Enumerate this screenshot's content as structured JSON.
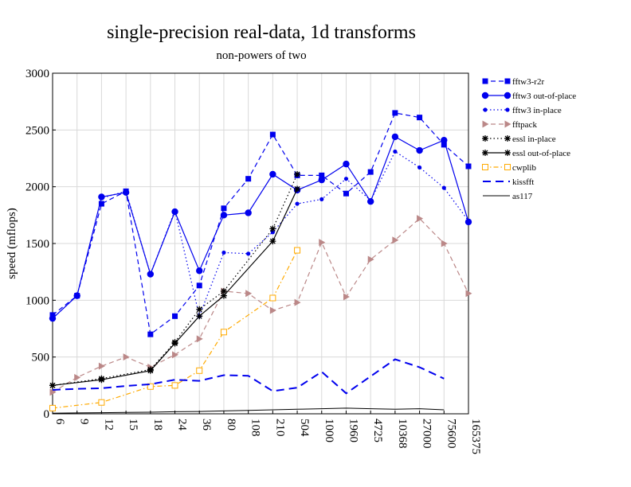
{
  "chart_data": {
    "type": "line",
    "title": "single-precision real-data, 1d transforms",
    "subtitle": "non-powers of two",
    "xlabel": "",
    "ylabel": "speed (mflops)",
    "ylim": [
      0,
      3000
    ],
    "yticks": [
      0,
      500,
      1000,
      1500,
      2000,
      2500,
      3000
    ],
    "grid": true,
    "legend_position": "right",
    "categories": [
      "6",
      "9",
      "12",
      "15",
      "18",
      "24",
      "36",
      "80",
      "108",
      "210",
      "504",
      "1000",
      "1960",
      "4725",
      "10368",
      "27000",
      "75600",
      "165375"
    ],
    "series": [
      {
        "name": "fftw3-r2r",
        "color": "#0000ee",
        "dash": "dashed",
        "marker": "square",
        "values": [
          870,
          1040,
          1850,
          1960,
          700,
          860,
          1130,
          1810,
          2070,
          2460,
          2100,
          2100,
          1940,
          2130,
          2650,
          2610,
          2370,
          2180
        ]
      },
      {
        "name": "fftw3 out-of-place",
        "color": "#0000ee",
        "dash": "solid",
        "marker": "circle",
        "values": [
          840,
          1040,
          1910,
          1950,
          1230,
          1780,
          1260,
          1750,
          1770,
          2110,
          1970,
          2060,
          2200,
          1870,
          2440,
          2320,
          2410,
          1690
        ]
      },
      {
        "name": "fftw3 in-place",
        "color": "#0000ee",
        "dash": "dotted",
        "marker": "dot",
        "values": [
          840,
          1040,
          1900,
          1960,
          1230,
          1790,
          860,
          1420,
          1410,
          1600,
          1850,
          1890,
          2070,
          1880,
          2310,
          2170,
          1990,
          1700
        ]
      },
      {
        "name": "fftpack",
        "color": "#bb8888",
        "dash": "dashed",
        "marker": "triangle",
        "values": [
          190,
          320,
          420,
          500,
          410,
          520,
          660,
          1080,
          1060,
          910,
          980,
          1510,
          1030,
          1360,
          1530,
          1720,
          1500,
          1060
        ]
      },
      {
        "name": "essl in-place",
        "color": "#000000",
        "dash": "dotted",
        "marker": "star",
        "values": [
          250,
          null,
          310,
          null,
          390,
          630,
          920,
          1080,
          null,
          1630,
          2110,
          null,
          null,
          null,
          null,
          null,
          null,
          null
        ]
      },
      {
        "name": "essl out-of-place",
        "color": "#000000",
        "dash": "solid",
        "marker": "star",
        "values": [
          250,
          null,
          300,
          null,
          380,
          620,
          860,
          1040,
          null,
          1520,
          1980,
          null,
          null,
          null,
          null,
          null,
          null,
          null
        ]
      },
      {
        "name": "cwplib",
        "color": "#ffaa00",
        "dash": "dashdot",
        "marker": "opensquare",
        "values": [
          50,
          null,
          100,
          null,
          240,
          250,
          380,
          720,
          null,
          1020,
          1440,
          null,
          null,
          null,
          null,
          null,
          null,
          null
        ]
      },
      {
        "name": "kissfft",
        "color": "#0000ee",
        "dash": "longdash",
        "marker": "none",
        "values": [
          210,
          220,
          225,
          245,
          260,
          300,
          290,
          340,
          335,
          200,
          230,
          370,
          180,
          330,
          480,
          410,
          310,
          null
        ]
      },
      {
        "name": "as117",
        "color": "#000000",
        "dash": "solid",
        "marker": "none",
        "values": [
          5,
          8,
          10,
          12,
          14,
          18,
          20,
          25,
          30,
          35,
          40,
          45,
          50,
          45,
          40,
          45,
          35,
          null
        ]
      }
    ]
  }
}
